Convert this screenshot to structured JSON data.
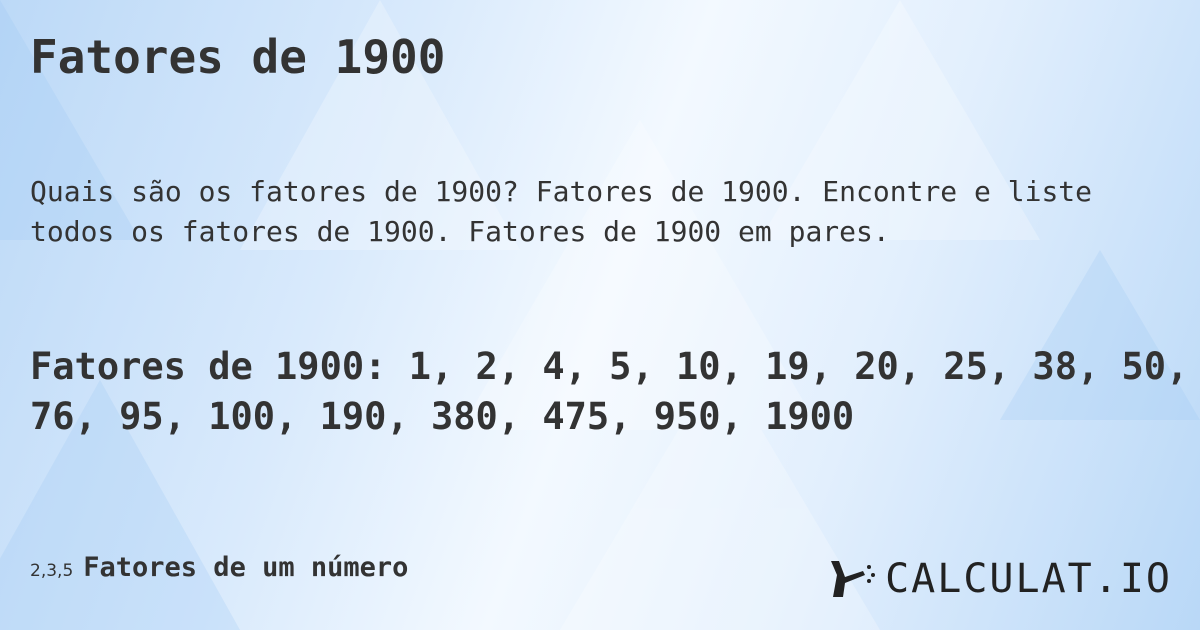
{
  "title": "Fatores de 1900",
  "description": "Quais são os fatores de 1900? Fatores de 1900. Encontre e liste todos os fatores de 1900. Fatores de 1900 em pares.",
  "factors_line": "Fatores de 1900: 1, 2, 4, 5, 10, 19, 20, 25, 38, 50, 76, 95, 100, 190, 380, 475, 950, 1900",
  "footer": {
    "icon_text": "2,3,5",
    "link_label": "Fatores de um número"
  },
  "logo": {
    "text": "CALCULAT.IO",
    "icon": "hand-wand-icon"
  }
}
